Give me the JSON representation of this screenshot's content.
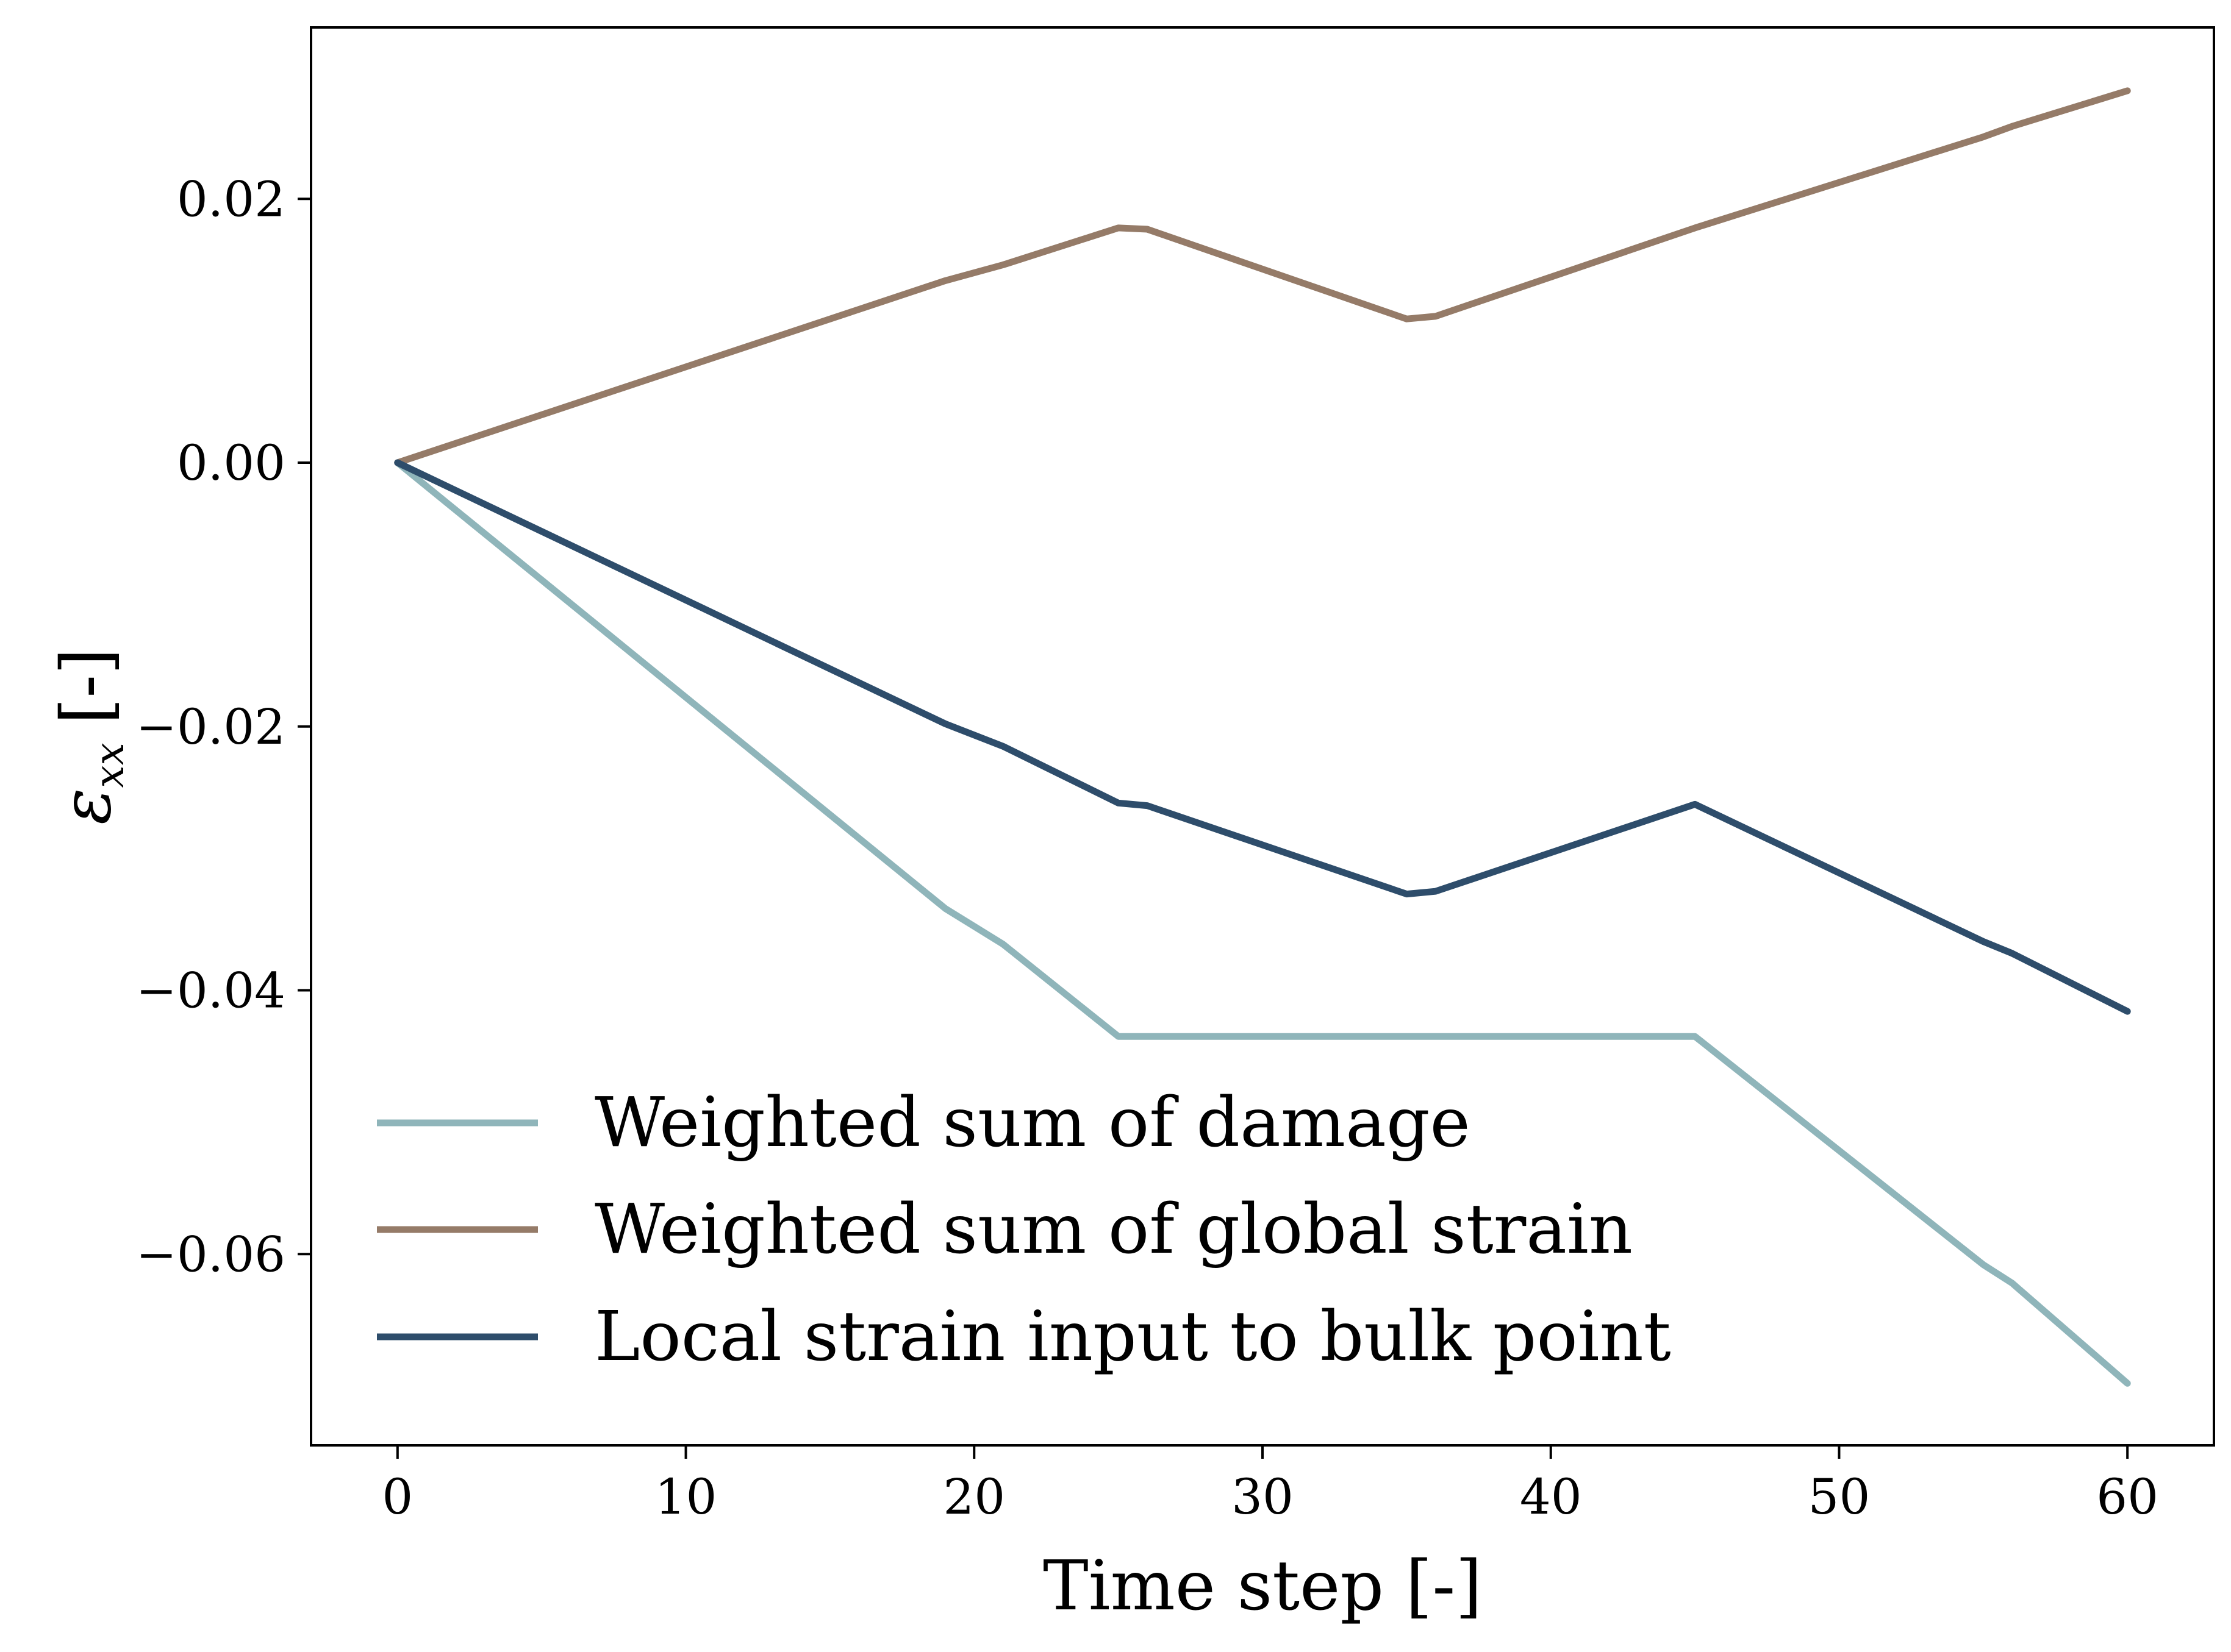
{
  "chart_data": {
    "type": "line",
    "title": "",
    "xlabel": "Time step [-]",
    "ylabel": "ε_xx [-]",
    "ylabel_main": "ε",
    "ylabel_sub": "xx",
    "ylabel_unit": "[-]",
    "xlim": [
      -3,
      63
    ],
    "ylim": [
      -0.0745,
      0.033
    ],
    "xticks": [
      0,
      10,
      20,
      30,
      40,
      50,
      60
    ],
    "xtick_labels": [
      "0",
      "10",
      "20",
      "30",
      "40",
      "50",
      "60"
    ],
    "yticks": [
      -0.06,
      -0.04,
      -0.02,
      0.0,
      0.02
    ],
    "ytick_labels": [
      "−0.06",
      "−0.04",
      "−0.02",
      "0.00",
      "0.02"
    ],
    "grid": false,
    "legend_position": "lower-left",
    "series": [
      {
        "name": "Weighted sum of damage",
        "color": "#8fb5ba",
        "x": [
          0,
          19,
          21,
          25,
          45,
          55,
          56,
          60
        ],
        "y": [
          0.0,
          -0.0338,
          -0.0365,
          -0.0435,
          -0.0435,
          -0.0608,
          -0.0622,
          -0.0698
        ]
      },
      {
        "name": "Weighted sum of global strain",
        "color": "#957b68",
        "x": [
          0,
          19,
          21,
          25,
          26,
          35,
          36,
          45,
          55,
          56,
          60
        ],
        "y": [
          0.0,
          0.0138,
          0.015,
          0.0178,
          0.0177,
          0.0109,
          0.0111,
          0.0178,
          0.0247,
          0.0255,
          0.0282
        ]
      },
      {
        "name": "Local strain input to bulk point",
        "color": "#2e4d6b",
        "x": [
          0,
          19,
          21,
          25,
          26,
          35,
          36,
          45,
          55,
          56,
          60
        ],
        "y": [
          0.0,
          -0.0198,
          -0.0215,
          -0.0258,
          -0.026,
          -0.0327,
          -0.0325,
          -0.0259,
          -0.0363,
          -0.0372,
          -0.0416
        ]
      }
    ]
  }
}
